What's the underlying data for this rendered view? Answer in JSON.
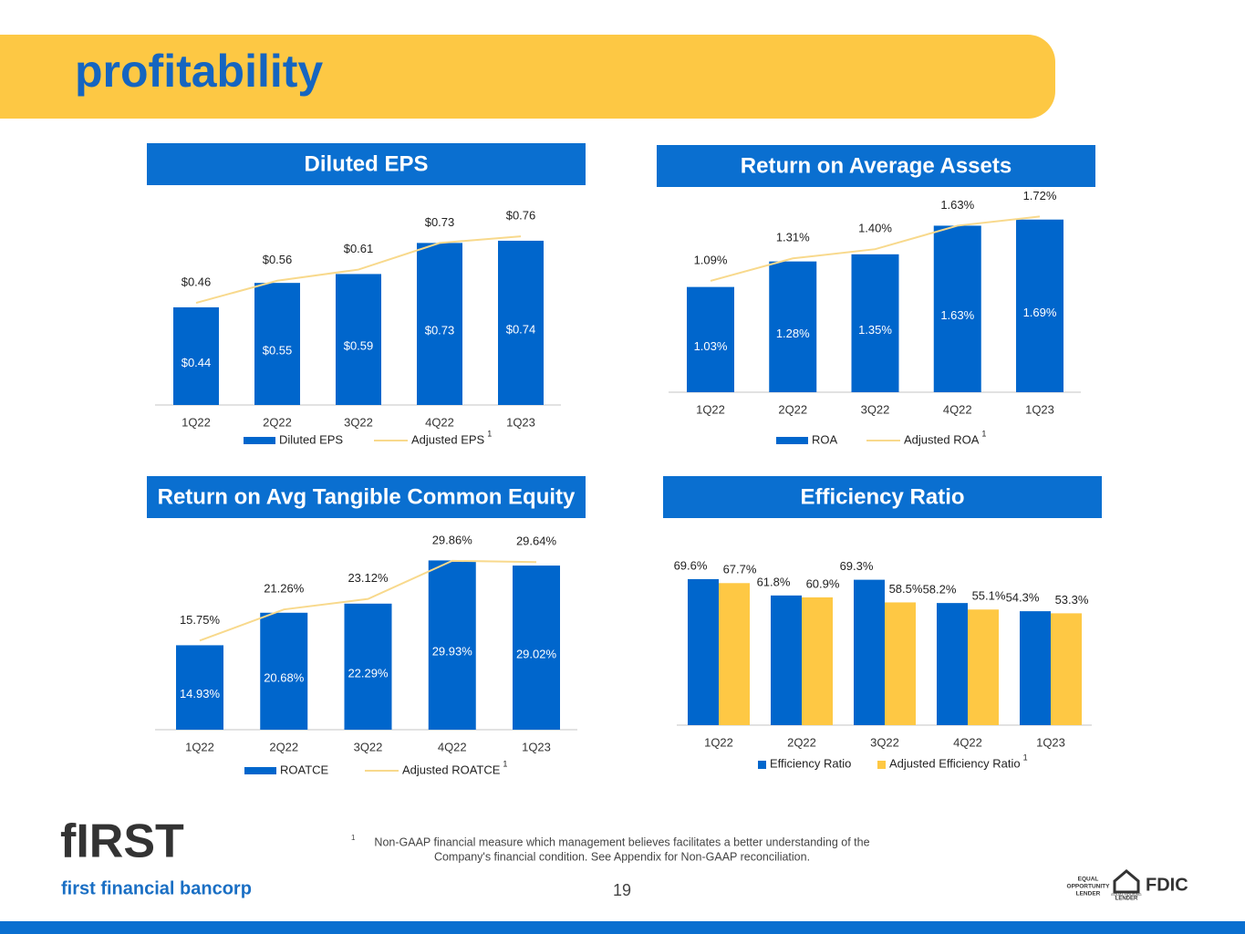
{
  "header": {
    "title": "profitability"
  },
  "chart_data": [
    {
      "type": "combo",
      "title": "Diluted EPS",
      "categories": [
        "1Q22",
        "2Q22",
        "3Q22",
        "4Q22",
        "1Q23"
      ],
      "ylim": [
        0,
        0.9
      ],
      "series": [
        {
          "name": "Diluted EPS",
          "type": "bar",
          "color": "#0066cc",
          "values": [
            0.44,
            0.55,
            0.59,
            0.73,
            0.74
          ],
          "value_labels": [
            "$0.44",
            "$0.55",
            "$0.59",
            "$0.73",
            "$0.74"
          ]
        },
        {
          "name": "Adjusted EPS",
          "type": "line",
          "color": "#f8d98c",
          "note": "1",
          "values": [
            0.46,
            0.56,
            0.61,
            0.73,
            0.76
          ],
          "value_labels": [
            "$0.46",
            "$0.56",
            "$0.61",
            "$0.73",
            "$0.76"
          ]
        }
      ]
    },
    {
      "type": "combo",
      "title": "Return on Average Assets",
      "categories": [
        "1Q22",
        "2Q22",
        "3Q22",
        "4Q22",
        "1Q23"
      ],
      "ylim": [
        0,
        2
      ],
      "series": [
        {
          "name": "ROA",
          "type": "bar",
          "color": "#0066cc",
          "values": [
            1.03,
            1.28,
            1.35,
            1.63,
            1.69
          ],
          "value_labels": [
            "1.03%",
            "1.28%",
            "1.35%",
            "1.63%",
            "1.69%"
          ]
        },
        {
          "name": "Adjusted ROA",
          "type": "line",
          "color": "#f8d98c",
          "note": "1",
          "values": [
            1.09,
            1.31,
            1.4,
            1.63,
            1.72
          ],
          "value_labels": [
            "1.09%",
            "1.31%",
            "1.40%",
            "1.63%",
            "1.72%"
          ]
        }
      ]
    },
    {
      "type": "combo",
      "title": "Return on Avg Tangible Common Equity",
      "categories": [
        "1Q22",
        "2Q22",
        "3Q22",
        "4Q22",
        "1Q23"
      ],
      "ylim": [
        0,
        35
      ],
      "series": [
        {
          "name": "ROATCE",
          "type": "bar",
          "color": "#0066cc",
          "values": [
            14.93,
            20.68,
            22.29,
            29.93,
            29.02
          ],
          "value_labels": [
            "14.93%",
            "20.68%",
            "22.29%",
            "29.93%",
            "29.02%"
          ]
        },
        {
          "name": "Adjusted ROATCE",
          "type": "line",
          "color": "#f8d98c",
          "note": "1",
          "values": [
            15.75,
            21.26,
            23.12,
            29.86,
            29.64
          ],
          "value_labels": [
            "15.75%",
            "21.26%",
            "23.12%",
            "29.86%",
            "29.64%"
          ]
        }
      ]
    },
    {
      "type": "bar",
      "title": "Efficiency Ratio",
      "categories": [
        "1Q22",
        "2Q22",
        "3Q22",
        "4Q22",
        "1Q23"
      ],
      "ylim": [
        0,
        80
      ],
      "series": [
        {
          "name": "Efficiency Ratio",
          "color": "#0066cc",
          "values": [
            69.6,
            61.8,
            69.3,
            58.2,
            54.3
          ],
          "value_labels": [
            "69.6%",
            "61.8%",
            "69.3%",
            "58.2%",
            "54.3%"
          ]
        },
        {
          "name": "Adjusted Efficiency Ratio",
          "color": "#fec844",
          "note": "1",
          "values": [
            67.7,
            60.9,
            58.5,
            55.1,
            53.3
          ],
          "value_labels": [
            "67.7%",
            "60.9%",
            "58.5%",
            "55.1%",
            "53.3%"
          ]
        }
      ]
    }
  ],
  "footnote": {
    "marker": "1",
    "lines": [
      "Non-GAAP financial measure which management believes facilitates a better understanding of the",
      "Company's financial condition.  See Appendix for Non-GAAP reconciliation."
    ]
  },
  "page_number": "19",
  "logo": {
    "mark": "fIRST",
    "name": "first financial bancorp"
  },
  "badges": {
    "equal_opportunity": [
      "EQUAL",
      "OPPORTUNITY",
      "LENDER"
    ],
    "equal_housing": [
      "EQUAL HOUSING",
      "LENDER"
    ],
    "fdic": "FDIC"
  }
}
